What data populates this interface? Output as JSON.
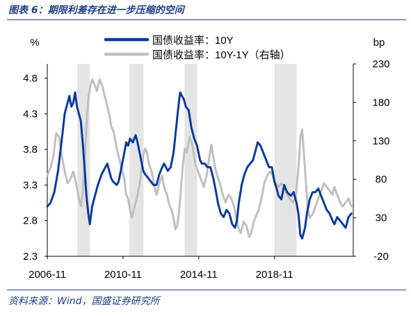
{
  "figure": {
    "title": "图表 6：期限利差存在进一步压缩的空间",
    "source": "资料来源：Wind，国盛证券研究所"
  },
  "colors": {
    "series_10y": "#0b3a9c",
    "series_spread": "#bfbfbf",
    "shade": "#e4e4e4",
    "axis": "#000000",
    "title": "#1f3f86"
  },
  "chart_data": {
    "type": "line",
    "x_ticks": [
      "2006-11",
      "2010-11",
      "2014-11",
      "2018-11"
    ],
    "x_range": [
      2006.83,
      2023.0
    ],
    "y_left": {
      "unit": "%",
      "range": [
        2.3,
        5.0
      ],
      "ticks": [
        "2.3",
        "2.8",
        "3.3",
        "3.8",
        "4.3",
        "4.8"
      ]
    },
    "y_right": {
      "unit": "bp",
      "range": [
        -20,
        230
      ],
      "ticks": [
        "-20",
        "30",
        "80",
        "130",
        "180",
        "230"
      ]
    },
    "shaded_periods": [
      [
        2008.42,
        2009.08
      ],
      [
        2011.17,
        2011.92
      ],
      [
        2014.08,
        2014.75
      ],
      [
        2018.83,
        2020.0
      ]
    ],
    "legend_position": "top",
    "grid": false,
    "series": [
      {
        "name": "国债收益率：10Y",
        "axis": "left",
        "color": "#0b3a9c",
        "points": [
          [
            2006.83,
            3.0
          ],
          [
            2007.0,
            3.05
          ],
          [
            2007.2,
            3.2
          ],
          [
            2007.4,
            3.5
          ],
          [
            2007.6,
            3.95
          ],
          [
            2007.75,
            4.3
          ],
          [
            2007.9,
            4.45
          ],
          [
            2008.0,
            4.55
          ],
          [
            2008.1,
            4.4
          ],
          [
            2008.2,
            4.45
          ],
          [
            2008.3,
            4.6
          ],
          [
            2008.4,
            4.4
          ],
          [
            2008.5,
            4.3
          ],
          [
            2008.6,
            4.2
          ],
          [
            2008.7,
            3.9
          ],
          [
            2008.8,
            3.55
          ],
          [
            2008.9,
            3.15
          ],
          [
            2009.0,
            2.9
          ],
          [
            2009.08,
            2.75
          ],
          [
            2009.2,
            3.0
          ],
          [
            2009.3,
            3.1
          ],
          [
            2009.5,
            3.3
          ],
          [
            2009.7,
            3.45
          ],
          [
            2009.9,
            3.55
          ],
          [
            2010.0,
            3.6
          ],
          [
            2010.1,
            3.5
          ],
          [
            2010.2,
            3.4
          ],
          [
            2010.3,
            3.35
          ],
          [
            2010.5,
            3.3
          ],
          [
            2010.6,
            3.35
          ],
          [
            2010.75,
            3.55
          ],
          [
            2010.9,
            3.75
          ],
          [
            2011.0,
            3.9
          ],
          [
            2011.1,
            3.85
          ],
          [
            2011.2,
            3.95
          ],
          [
            2011.35,
            3.9
          ],
          [
            2011.5,
            4.0
          ],
          [
            2011.6,
            3.9
          ],
          [
            2011.75,
            3.7
          ],
          [
            2011.9,
            3.5
          ],
          [
            2012.0,
            3.45
          ],
          [
            2012.15,
            3.4
          ],
          [
            2012.3,
            3.35
          ],
          [
            2012.45,
            3.3
          ],
          [
            2012.6,
            3.3
          ],
          [
            2012.75,
            3.45
          ],
          [
            2012.9,
            3.55
          ],
          [
            2013.0,
            3.6
          ],
          [
            2013.2,
            3.5
          ],
          [
            2013.35,
            3.55
          ],
          [
            2013.5,
            3.75
          ],
          [
            2013.6,
            4.0
          ],
          [
            2013.7,
            4.25
          ],
          [
            2013.8,
            4.5
          ],
          [
            2013.85,
            4.6
          ],
          [
            2013.95,
            4.55
          ],
          [
            2014.05,
            4.5
          ],
          [
            2014.15,
            4.4
          ],
          [
            2014.3,
            4.35
          ],
          [
            2014.45,
            4.1
          ],
          [
            2014.6,
            3.95
          ],
          [
            2014.75,
            3.85
          ],
          [
            2014.9,
            3.65
          ],
          [
            2015.0,
            3.6
          ],
          [
            2015.15,
            3.6
          ],
          [
            2015.3,
            3.55
          ],
          [
            2015.45,
            3.55
          ],
          [
            2015.6,
            3.4
          ],
          [
            2015.75,
            3.2
          ],
          [
            2015.85,
            3.05
          ],
          [
            2016.0,
            2.9
          ],
          [
            2016.15,
            2.85
          ],
          [
            2016.3,
            2.95
          ],
          [
            2016.45,
            2.9
          ],
          [
            2016.6,
            2.75
          ],
          [
            2016.75,
            2.7
          ],
          [
            2016.85,
            2.8
          ],
          [
            2016.95,
            3.05
          ],
          [
            2017.1,
            3.3
          ],
          [
            2017.25,
            3.45
          ],
          [
            2017.4,
            3.55
          ],
          [
            2017.55,
            3.6
          ],
          [
            2017.7,
            3.65
          ],
          [
            2017.85,
            3.8
          ],
          [
            2017.95,
            3.9
          ],
          [
            2018.1,
            3.85
          ],
          [
            2018.25,
            3.75
          ],
          [
            2018.4,
            3.65
          ],
          [
            2018.55,
            3.55
          ],
          [
            2018.7,
            3.55
          ],
          [
            2018.83,
            3.35
          ],
          [
            2018.95,
            3.25
          ],
          [
            2019.05,
            3.15
          ],
          [
            2019.2,
            3.1
          ],
          [
            2019.35,
            3.3
          ],
          [
            2019.5,
            3.2
          ],
          [
            2019.7,
            3.15
          ],
          [
            2019.85,
            3.2
          ],
          [
            2020.0,
            3.05
          ],
          [
            2020.1,
            2.9
          ],
          [
            2020.2,
            2.6
          ],
          [
            2020.3,
            2.55
          ],
          [
            2020.45,
            2.7
          ],
          [
            2020.55,
            2.9
          ],
          [
            2020.7,
            3.1
          ],
          [
            2020.85,
            3.2
          ],
          [
            2021.0,
            3.2
          ],
          [
            2021.15,
            3.25
          ],
          [
            2021.3,
            3.15
          ],
          [
            2021.45,
            3.05
          ],
          [
            2021.6,
            2.95
          ],
          [
            2021.75,
            2.9
          ],
          [
            2021.9,
            2.8
          ],
          [
            2022.0,
            2.75
          ],
          [
            2022.15,
            2.85
          ],
          [
            2022.3,
            2.8
          ],
          [
            2022.45,
            2.75
          ],
          [
            2022.6,
            2.7
          ],
          [
            2022.75,
            2.85
          ],
          [
            2022.9,
            2.9
          ]
        ]
      },
      {
        "name": "国债收益率：10Y-1Y（右轴）",
        "axis": "right",
        "color": "#bfbfbf",
        "points": [
          [
            2006.83,
            85
          ],
          [
            2007.0,
            95
          ],
          [
            2007.15,
            110
          ],
          [
            2007.3,
            140
          ],
          [
            2007.45,
            135
          ],
          [
            2007.6,
            110
          ],
          [
            2007.75,
            90
          ],
          [
            2007.9,
            75
          ],
          [
            2008.05,
            80
          ],
          [
            2008.2,
            90
          ],
          [
            2008.35,
            75
          ],
          [
            2008.5,
            55
          ],
          [
            2008.6,
            45
          ],
          [
            2008.7,
            60
          ],
          [
            2008.8,
            100
          ],
          [
            2008.9,
            150
          ],
          [
            2009.0,
            185
          ],
          [
            2009.1,
            200
          ],
          [
            2009.2,
            210
          ],
          [
            2009.3,
            205
          ],
          [
            2009.45,
            195
          ],
          [
            2009.6,
            210
          ],
          [
            2009.75,
            200
          ],
          [
            2009.9,
            185
          ],
          [
            2010.0,
            175
          ],
          [
            2010.1,
            165
          ],
          [
            2010.2,
            150
          ],
          [
            2010.35,
            140
          ],
          [
            2010.5,
            120
          ],
          [
            2010.65,
            105
          ],
          [
            2010.8,
            90
          ],
          [
            2010.9,
            80
          ],
          [
            2011.0,
            60
          ],
          [
            2011.1,
            55
          ],
          [
            2011.2,
            40
          ],
          [
            2011.3,
            30
          ],
          [
            2011.45,
            45
          ],
          [
            2011.6,
            60
          ],
          [
            2011.75,
            80
          ],
          [
            2011.9,
            110
          ],
          [
            2012.0,
            120
          ],
          [
            2012.1,
            115
          ],
          [
            2012.2,
            100
          ],
          [
            2012.35,
            90
          ],
          [
            2012.5,
            70
          ],
          [
            2012.6,
            60
          ],
          [
            2012.75,
            75
          ],
          [
            2012.9,
            85
          ],
          [
            2013.0,
            70
          ],
          [
            2013.15,
            60
          ],
          [
            2013.3,
            45
          ],
          [
            2013.4,
            40
          ],
          [
            2013.5,
            30
          ],
          [
            2013.6,
            15
          ],
          [
            2013.7,
            20
          ],
          [
            2013.8,
            40
          ],
          [
            2013.9,
            70
          ],
          [
            2014.0,
            100
          ],
          [
            2014.1,
            120
          ],
          [
            2014.2,
            115
          ],
          [
            2014.35,
            135
          ],
          [
            2014.5,
            125
          ],
          [
            2014.65,
            100
          ],
          [
            2014.8,
            90
          ],
          [
            2014.95,
            80
          ],
          [
            2015.1,
            70
          ],
          [
            2015.25,
            85
          ],
          [
            2015.4,
            110
          ],
          [
            2015.5,
            125
          ],
          [
            2015.6,
            110
          ],
          [
            2015.7,
            95
          ],
          [
            2015.8,
            85
          ],
          [
            2015.95,
            75
          ],
          [
            2016.1,
            60
          ],
          [
            2016.25,
            50
          ],
          [
            2016.4,
            60
          ],
          [
            2016.55,
            55
          ],
          [
            2016.7,
            45
          ],
          [
            2016.85,
            25
          ],
          [
            2016.95,
            15
          ],
          [
            2017.05,
            10
          ],
          [
            2017.2,
            25
          ],
          [
            2017.35,
            20
          ],
          [
            2017.5,
            5
          ],
          [
            2017.6,
            10
          ],
          [
            2017.75,
            25
          ],
          [
            2017.9,
            35
          ],
          [
            2018.0,
            40
          ],
          [
            2018.15,
            55
          ],
          [
            2018.3,
            75
          ],
          [
            2018.45,
            85
          ],
          [
            2018.6,
            90
          ],
          [
            2018.75,
            85
          ],
          [
            2018.9,
            75
          ],
          [
            2019.05,
            70
          ],
          [
            2019.2,
            75
          ],
          [
            2019.35,
            70
          ],
          [
            2019.5,
            60
          ],
          [
            2019.65,
            55
          ],
          [
            2019.8,
            50
          ],
          [
            2019.95,
            55
          ],
          [
            2020.05,
            80
          ],
          [
            2020.15,
            110
          ],
          [
            2020.2,
            135
          ],
          [
            2020.3,
            145
          ],
          [
            2020.4,
            110
          ],
          [
            2020.5,
            75
          ],
          [
            2020.6,
            40
          ],
          [
            2020.7,
            30
          ],
          [
            2020.85,
            35
          ],
          [
            2021.0,
            45
          ],
          [
            2021.15,
            55
          ],
          [
            2021.3,
            65
          ],
          [
            2021.45,
            75
          ],
          [
            2021.6,
            70
          ],
          [
            2021.75,
            65
          ],
          [
            2021.9,
            60
          ],
          [
            2022.0,
            70
          ],
          [
            2022.15,
            60
          ],
          [
            2022.3,
            50
          ],
          [
            2022.45,
            45
          ],
          [
            2022.6,
            50
          ],
          [
            2022.75,
            55
          ],
          [
            2022.9,
            45
          ]
        ]
      }
    ]
  }
}
